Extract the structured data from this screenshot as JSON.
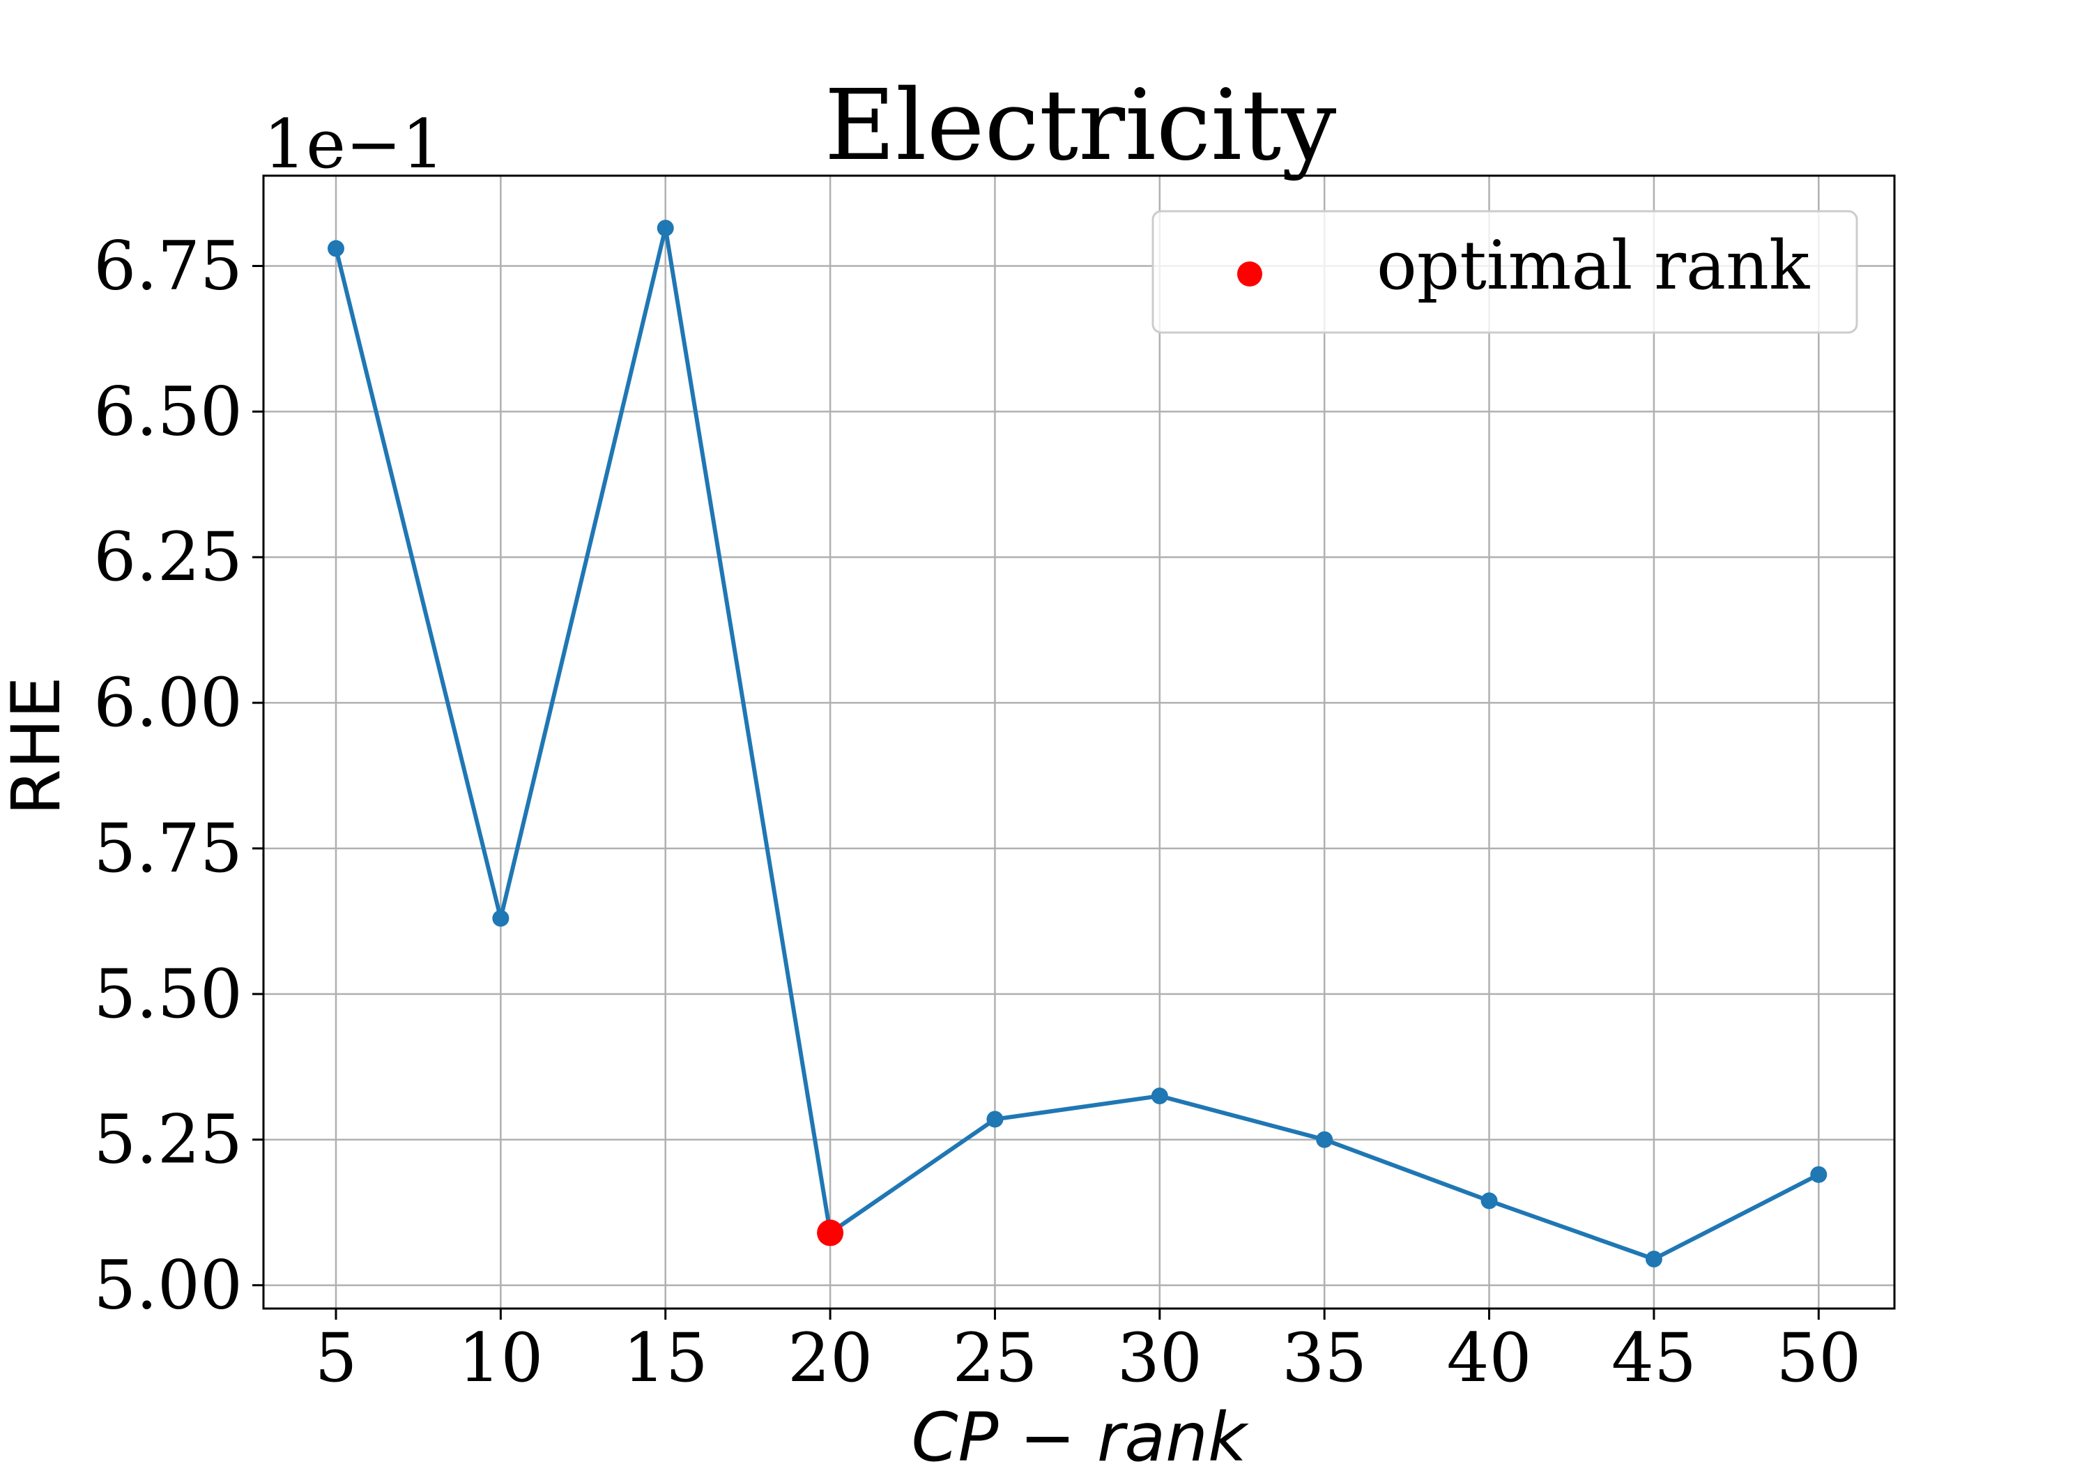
{
  "chart_data": {
    "type": "line",
    "title": "Electricity",
    "xlabel": "CP − rank",
    "ylabel": "RHE",
    "y_offset_label": "1e−1",
    "x": [
      5,
      10,
      15,
      20,
      25,
      30,
      35,
      40,
      45,
      50
    ],
    "xticks": [
      "5",
      "10",
      "15",
      "20",
      "25",
      "30",
      "35",
      "40",
      "45",
      "50"
    ],
    "yticks": [
      "5.00",
      "5.25",
      "5.50",
      "5.75",
      "6.00",
      "6.25",
      "6.50",
      "6.75"
    ],
    "xlim": [
      2.8,
      52.3
    ],
    "ylim": [
      4.96,
      6.905
    ],
    "grid": true,
    "series": [
      {
        "values": [
          6.78,
          5.63,
          6.815,
          5.09,
          5.285,
          5.325,
          5.25,
          5.145,
          5.045,
          5.19
        ],
        "color": "#1f77b4"
      }
    ],
    "highlight": {
      "x": 20,
      "y": 5.09,
      "color": "#ff0000",
      "legend_label": "optimal rank"
    },
    "legend_position": "top-right"
  }
}
